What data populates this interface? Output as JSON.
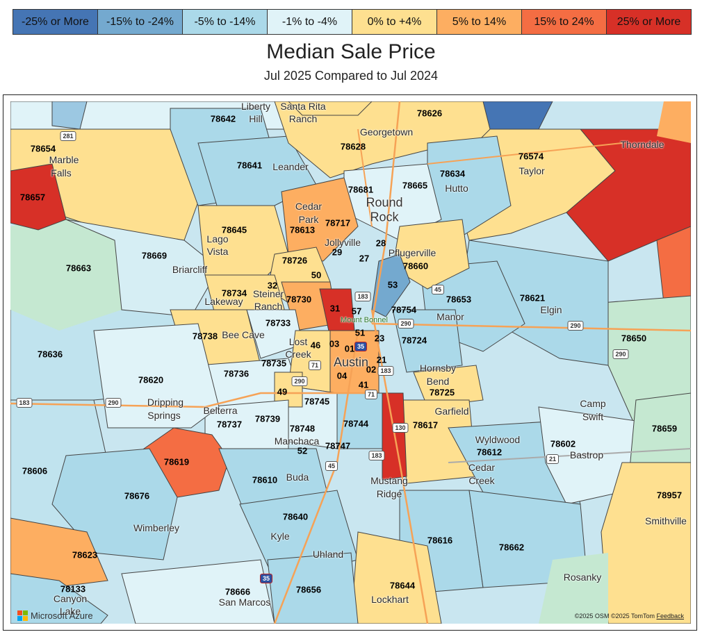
{
  "legend": [
    {
      "label": "-25% or More",
      "color": "#4575b4"
    },
    {
      "label": "-15% to -24%",
      "color": "#74a9cf"
    },
    {
      "label": "-5% to -14%",
      "color": "#abd9e9"
    },
    {
      "label": "-1% to -4%",
      "color": "#e0f3f8"
    },
    {
      "label": "0% to +4%",
      "color": "#fee090"
    },
    {
      "label": "5% to 14%",
      "color": "#fdae61"
    },
    {
      "label": "15% to 24%",
      "color": "#f46d43"
    },
    {
      "label": "25% or More",
      "color": "#d73027"
    }
  ],
  "title": "Median Sale Price",
  "subtitle": "Jul 2025 Compared to Jul 2024",
  "zip_labels": [
    "78626",
    "78642",
    "78628",
    "78654",
    "78641",
    "76574",
    "78634",
    "78681",
    "78665",
    "78657",
    "78717",
    "78613",
    "78645",
    "78660",
    "28",
    "29",
    "27",
    "78669",
    "78663",
    "78726",
    "50",
    "32",
    "78734",
    "78730",
    "53",
    "78653",
    "78621",
    "78754",
    "31",
    "57",
    "78733",
    "78738",
    "51",
    "23",
    "78724",
    "78650",
    "03",
    "01",
    "46",
    "78636",
    "78735",
    "78736",
    "02",
    "21",
    "78620",
    "04",
    "41",
    "78725",
    "49",
    "78745",
    "78737",
    "78739",
    "78748",
    "78744",
    "78617",
    "78659",
    "52",
    "78747",
    "78612",
    "78602",
    "78619",
    "78606",
    "78610",
    "78676",
    "78957",
    "78640",
    "78616",
    "78662",
    "78623",
    "78133",
    "78644",
    "78666",
    "78656"
  ],
  "city_labels": [
    "Liberty",
    "Hill",
    "Santa Rita",
    "Ranch",
    "Georgetown",
    "Marble",
    "Falls",
    "Leander",
    "Thorndale",
    "Taylor",
    "Hutto",
    "Cedar",
    "Park",
    "Round",
    "Rock",
    "Lago",
    "Vista",
    "Jollyville",
    "Pflugerville",
    "Briarcliff",
    "Steiner",
    "Ranch",
    "Lakeway",
    "Elgin",
    "Manor",
    "Bee Cave",
    "Lost",
    "Creek",
    "Mount Bonnel",
    "Austin",
    "Hornsby",
    "Bend",
    "Dripping",
    "Springs",
    "Belterra",
    "Camp",
    "Swift",
    "Garfield",
    "Manchaca",
    "Wyldwood",
    "Bastrop",
    "Cedar",
    "Creek",
    "Buda",
    "Mustang",
    "Ridge",
    "Smithville",
    "Wimberley",
    "Kyle",
    "Uhland",
    "Rosanky",
    "Canyon",
    "Lake",
    "San Marcos",
    "Lockhart"
  ],
  "highway_shields": [
    "281",
    "183",
    "290",
    "45",
    "290",
    "290",
    "290",
    "183",
    "35",
    "290",
    "183",
    "71",
    "71",
    "130",
    "21",
    "45",
    "183",
    "35"
  ],
  "attribution": {
    "provider": "Microsoft Azure",
    "copyright_osm": "©2025 OSM",
    "copyright_tomtom": "©2025 TomTom",
    "feedback": "Feedback"
  }
}
